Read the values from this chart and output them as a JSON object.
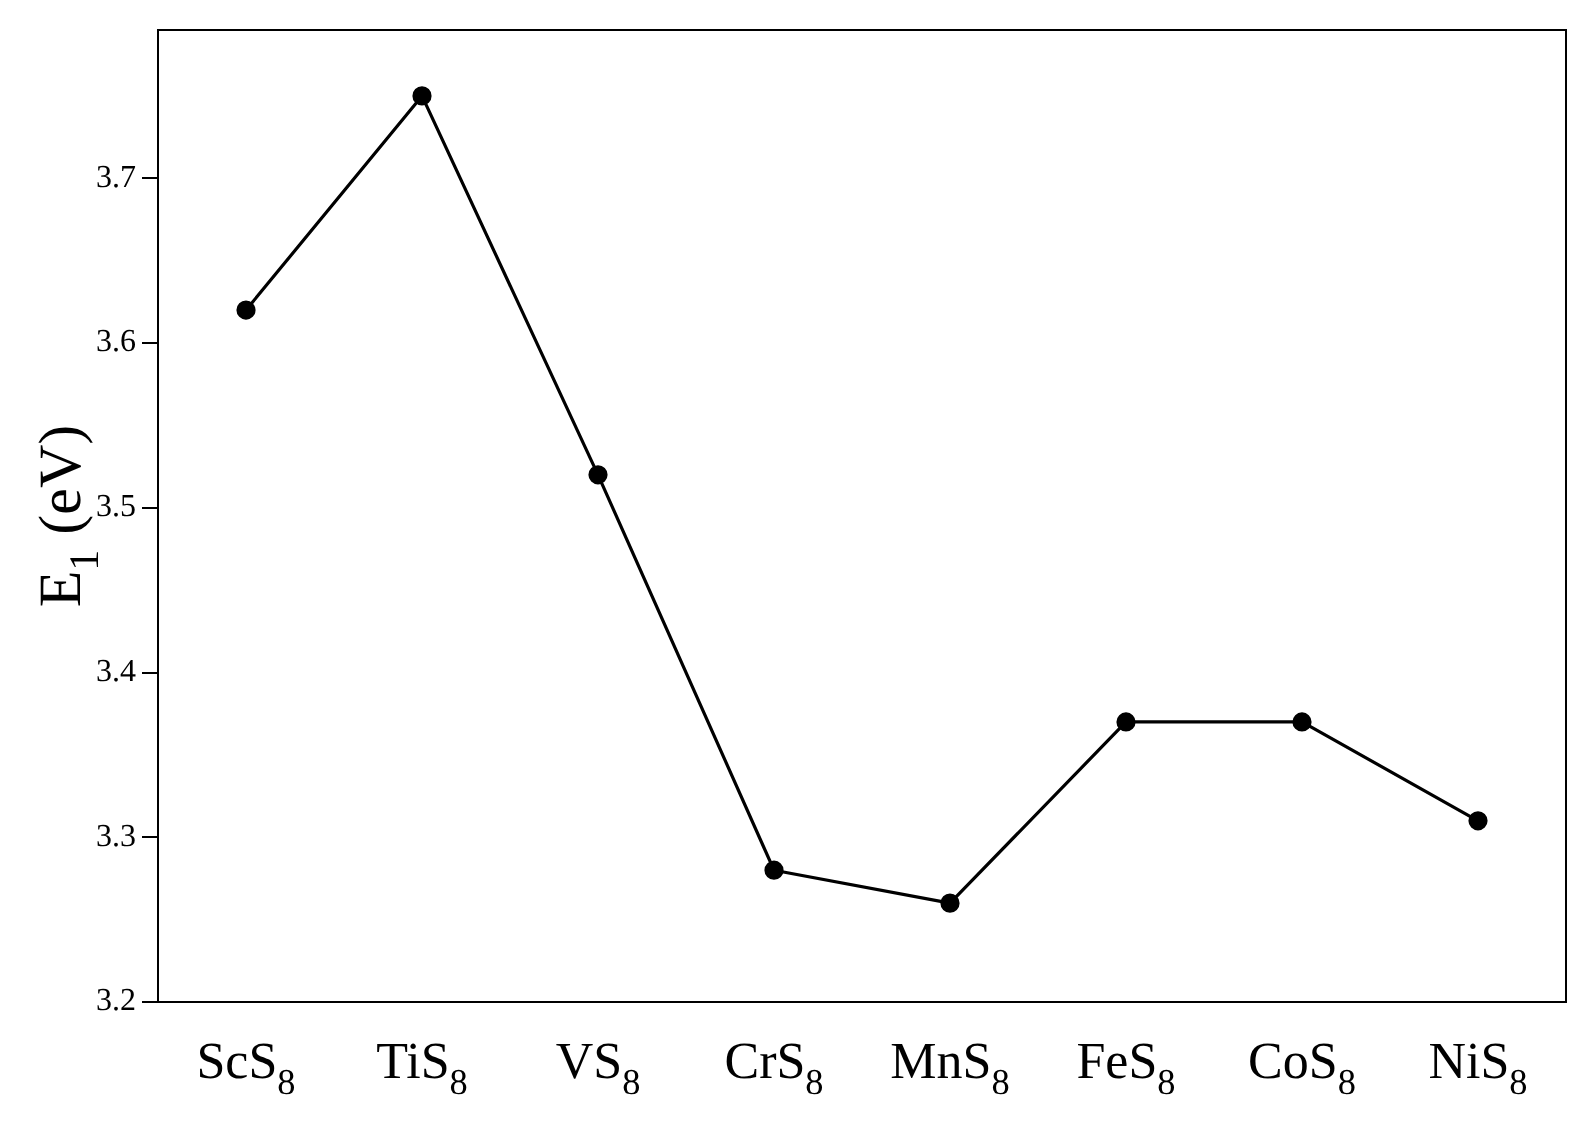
{
  "chart_data": {
    "type": "line",
    "ylabel": "E$_{1}$ (eV)",
    "categories": [
      "ScS$_{8}$",
      "TiS$_{8}$",
      "VS$_{8}$",
      "CrS$_{8}$",
      "MnS$_{8}$",
      "FeS$_{8}$",
      "CoS$_{8}$",
      "NiS$_{8}$"
    ],
    "series": [
      {
        "color": "#000000",
        "values": [
          3.62,
          3.75,
          3.52,
          3.28,
          3.26,
          3.37,
          3.37,
          3.31
        ]
      }
    ],
    "ylim": [
      3.2,
      3.79
    ],
    "yticks": [
      3.2,
      3.3,
      3.4,
      3.5,
      3.6,
      3.7
    ],
    "grid": false,
    "legend": false,
    "marker": "circle",
    "line_style": "solid"
  }
}
